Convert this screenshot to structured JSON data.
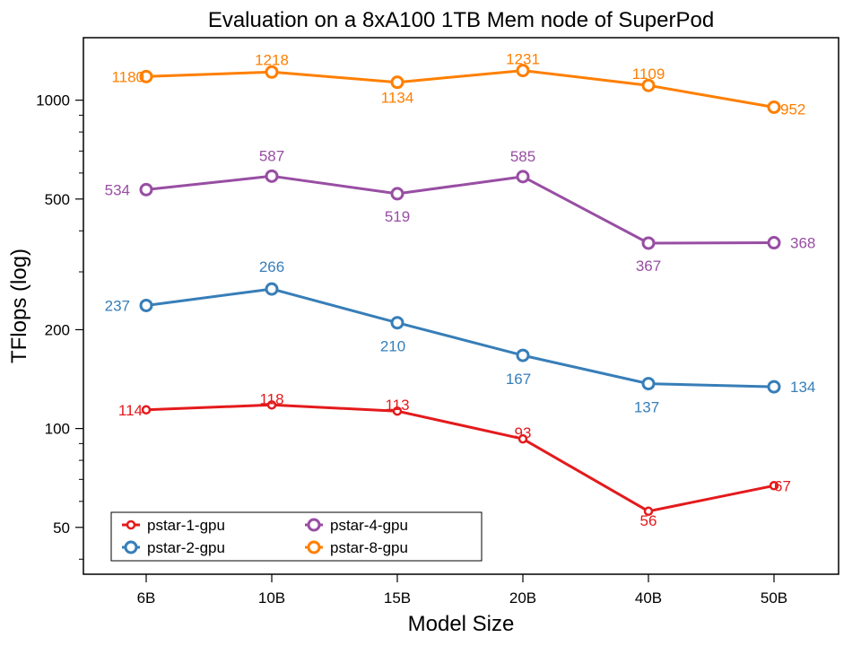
{
  "chart_data": {
    "type": "line",
    "title": "Evaluation on a 8xA100 1TB Mem node of SuperPod",
    "xlabel": "Model Size",
    "ylabel": "TFlops (log)",
    "yscale": "log",
    "ylim": [
      36,
      1550
    ],
    "yticks": [
      50,
      100,
      200,
      500,
      1000
    ],
    "grid": false,
    "legend_position": "lower-left",
    "categories": [
      "6B",
      "10B",
      "15B",
      "20B",
      "40B",
      "50B"
    ],
    "series": [
      {
        "name": "pstar-1-gpu",
        "color": "#e41a1c",
        "values": [
          114,
          118,
          113,
          93,
          56,
          67
        ]
      },
      {
        "name": "pstar-2-gpu",
        "color": "#377eb8",
        "values": [
          237,
          266,
          210,
          167,
          137,
          134
        ]
      },
      {
        "name": "pstar-4-gpu",
        "color": "#984ea3",
        "values": [
          534,
          587,
          519,
          585,
          367,
          368
        ]
      },
      {
        "name": "pstar-8-gpu",
        "color": "#ff7f00",
        "values": [
          1180,
          1218,
          1134,
          1231,
          1109,
          952
        ]
      }
    ]
  }
}
